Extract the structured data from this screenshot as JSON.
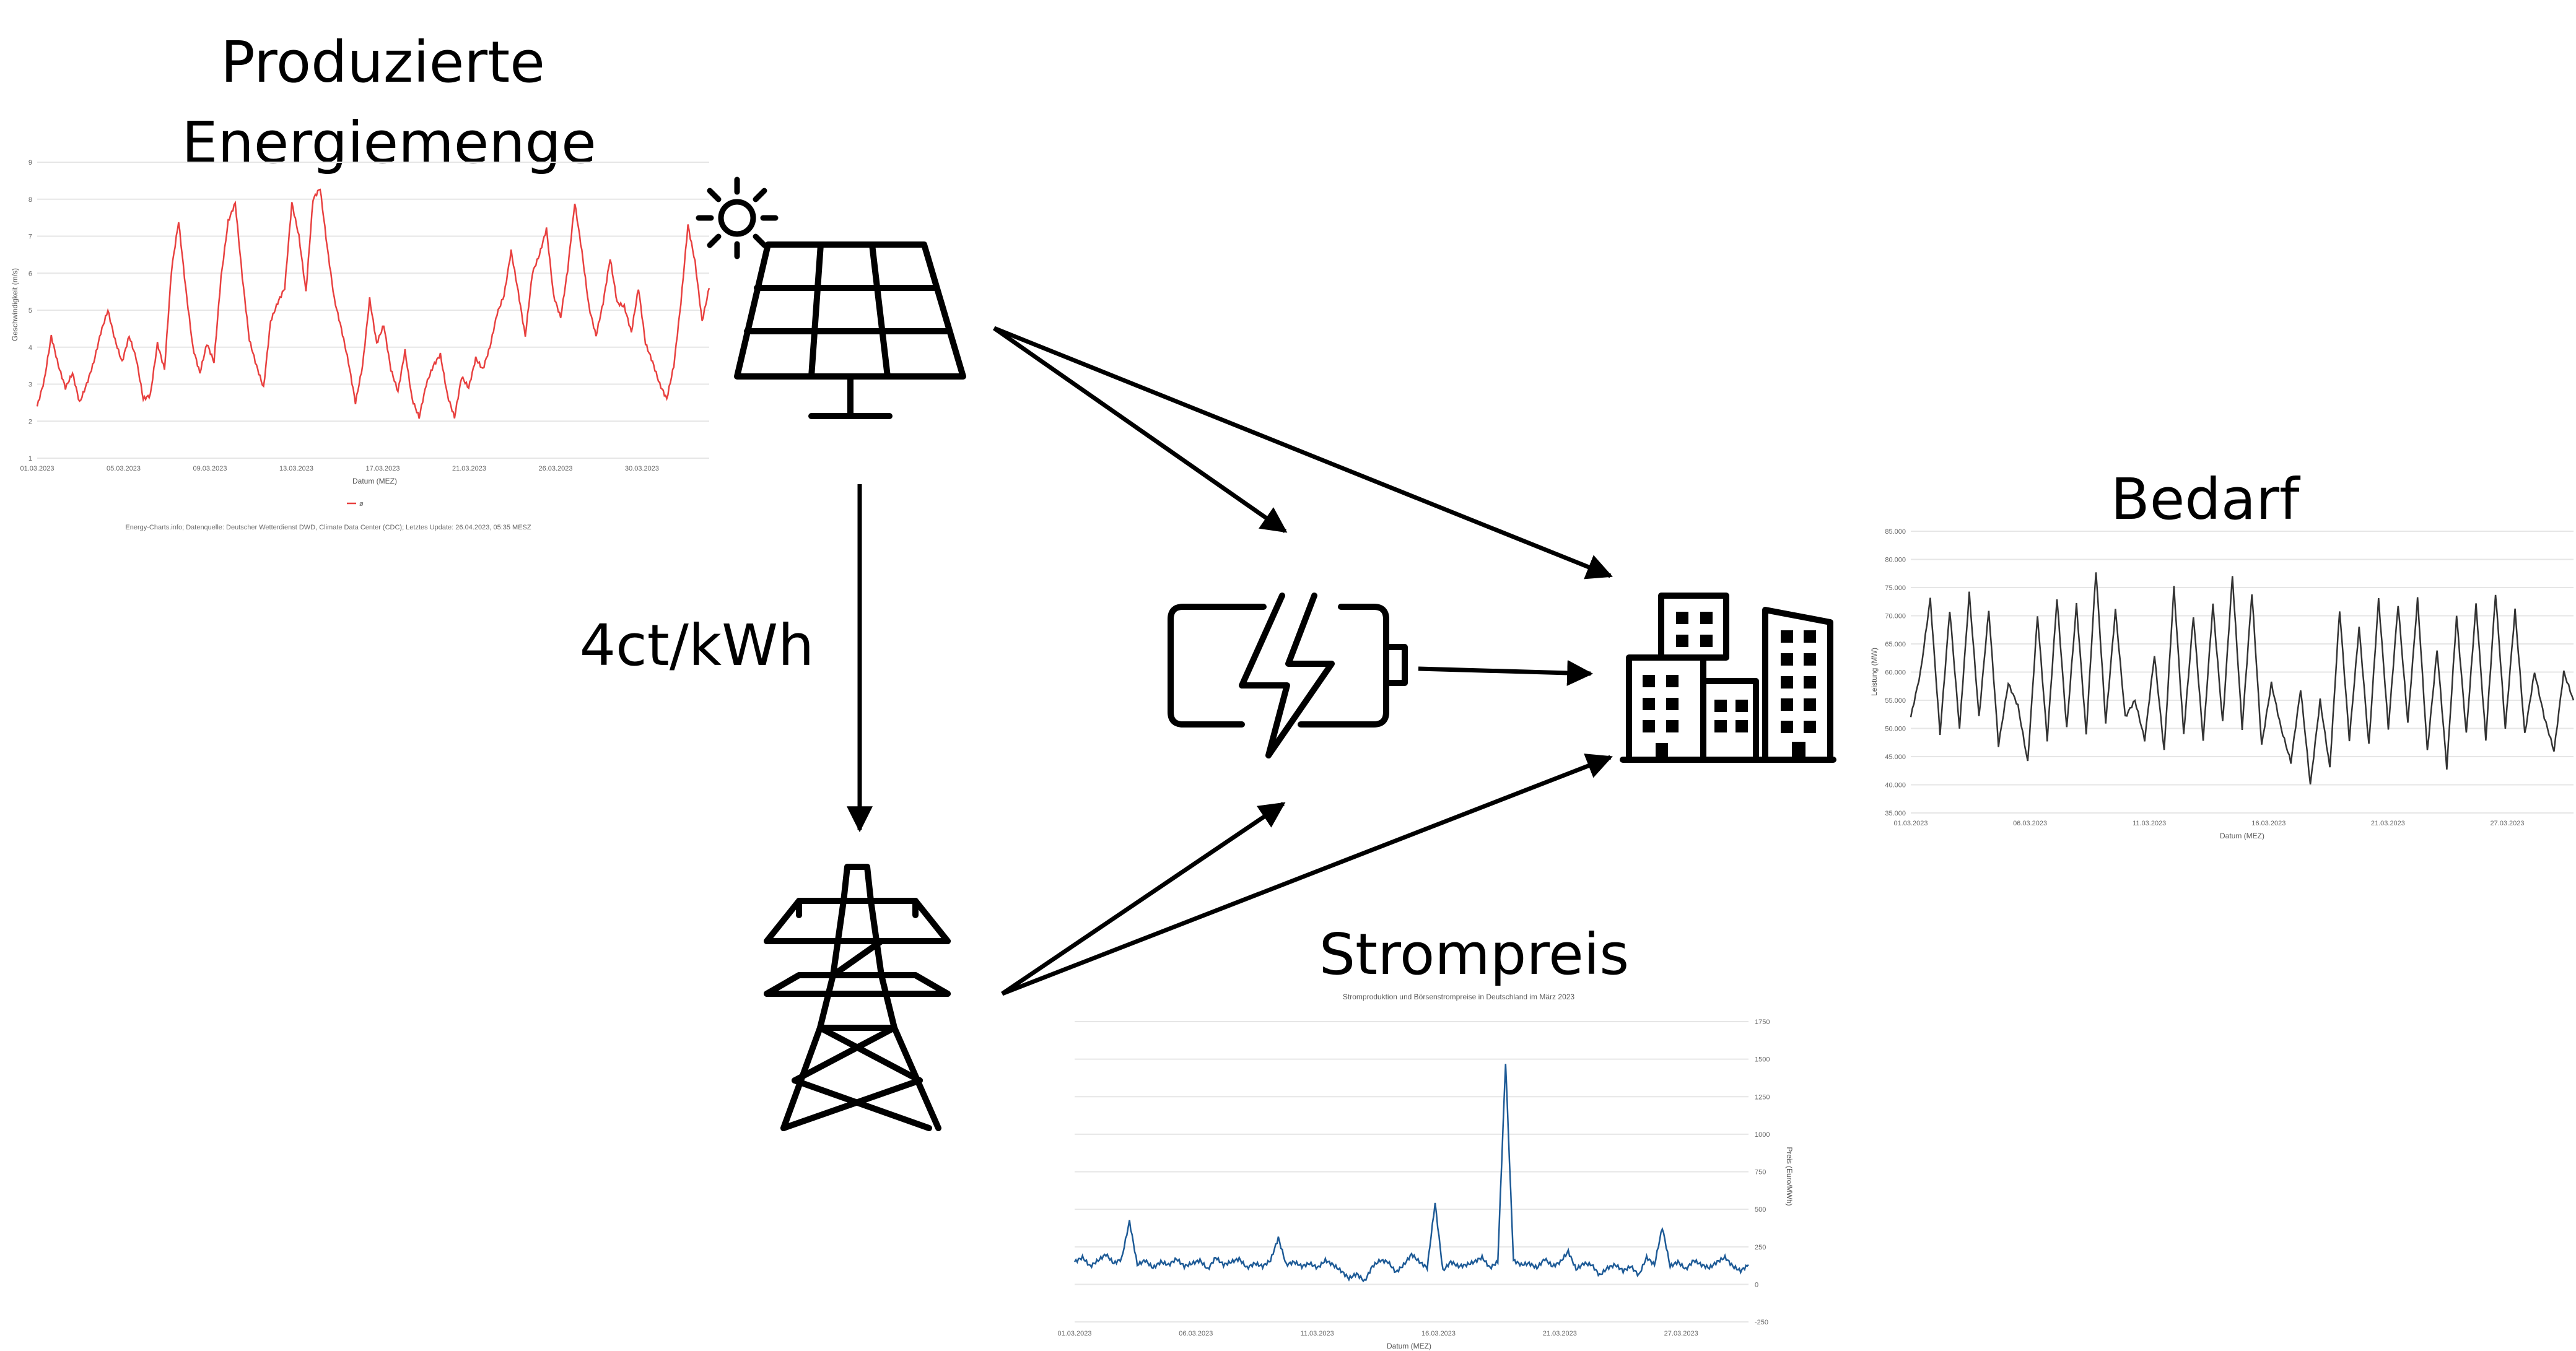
{
  "labels": {
    "production_title_line1": "Produzierte",
    "production_title_line2": "Energiemenge",
    "demand_title": "Bedarf",
    "price_title": "Strompreis",
    "grid_price": "4ct/kWh"
  },
  "icons": [
    "sun-icon",
    "solar-panel-icon",
    "battery-icon",
    "buildings-icon",
    "power-tower-icon"
  ],
  "colors": {
    "production_line": "#e8403f",
    "demand_line": "#333333",
    "price_line": "#1d5a96"
  },
  "chart_data": [
    {
      "id": "production",
      "type": "line",
      "ylabel": "Geschwindigkeit (m/s)",
      "xlabel": "Datum (MEZ)",
      "ylim": [
        1,
        9
      ],
      "yticks": [
        "1",
        "2",
        "3",
        "4",
        "5",
        "6",
        "7",
        "8",
        "9"
      ],
      "xticks": [
        "01.03.2023",
        "05.03.2023",
        "09.03.2023",
        "13.03.2023",
        "17.03.2023",
        "21.03.2023",
        "26.03.2023",
        "30.03.2023"
      ],
      "legend": "ø",
      "source": "Energy-Charts.info; Datenquelle: Deutscher Wetterdienst DWD, Climate Data Center (CDC); Letztes Update: 26.04.2023, 05:35 MESZ",
      "series": [
        {
          "values": [
            2.4,
            3.1,
            4.3,
            3.5,
            2.9,
            3.3,
            2.5,
            3.0,
            3.6,
            4.4,
            5.0,
            4.2,
            3.6,
            4.3,
            3.7,
            2.6,
            2.7,
            4.1,
            3.4,
            6.1,
            7.4,
            5.6,
            4.0,
            3.3,
            4.1,
            3.6,
            5.9,
            7.4,
            7.9,
            5.9,
            4.2,
            3.5,
            2.9,
            4.7,
            5.2,
            5.6,
            7.9,
            7.0,
            5.5,
            8.0,
            8.3,
            6.7,
            5.3,
            4.5,
            3.6,
            2.5,
            3.5,
            5.3,
            4.1,
            4.6,
            3.4,
            2.8,
            3.9,
            2.6,
            2.1,
            3.0,
            3.5,
            3.8,
            2.7,
            2.1,
            3.2,
            2.9,
            3.7,
            3.4,
            4.0,
            4.9,
            5.4,
            6.6,
            5.5,
            4.3,
            6.0,
            6.5,
            7.2,
            5.4,
            4.8,
            6.1,
            7.9,
            6.6,
            5.1,
            4.3,
            5.2,
            6.4,
            5.2,
            5.1,
            4.4,
            5.6,
            4.1,
            3.6,
            3.0,
            2.6,
            3.5,
            5.2,
            7.3,
            6.3,
            4.7,
            5.6
          ]
        }
      ]
    },
    {
      "id": "demand",
      "type": "line",
      "ylabel": "Leistung (MW)",
      "xlabel": "Datum (MEZ)",
      "ylim": [
        35000,
        85000
      ],
      "yticks": [
        "35.000",
        "40.000",
        "45.000",
        "50.000",
        "55.000",
        "60.000",
        "65.000",
        "70.000",
        "75.000",
        "80.000",
        "85.000"
      ],
      "xticks": [
        "01.03.2023",
        "06.03.2023",
        "11.03.2023",
        "16.03.2023",
        "21.03.2023",
        "27.03.2023"
      ],
      "series": [
        {
          "values": [
            52000,
            60000,
            73000,
            49000,
            71000,
            50000,
            74000,
            52000,
            71000,
            47000,
            58000,
            54000,
            44000,
            70000,
            48000,
            73000,
            50000,
            72000,
            49000,
            78000,
            51000,
            71000,
            52000,
            55000,
            48000,
            63000,
            46000,
            75000,
            49000,
            70000,
            48000,
            72000,
            51000,
            77000,
            50000,
            74000,
            47000,
            58000,
            50000,
            44000,
            57000,
            40000,
            55000,
            43000,
            71000,
            48000,
            68000,
            47000,
            73000,
            50000,
            72000,
            51000,
            73000,
            46000,
            64000,
            43000,
            70000,
            49000,
            72000,
            48000,
            74000,
            50000,
            71000,
            49000,
            60000,
            52000,
            46000,
            60000,
            55000
          ]
        }
      ]
    },
    {
      "id": "price",
      "type": "line",
      "title": "Stromproduktion und Börsenstrompreise in Deutschland im März 2023",
      "ylabel": "Preis (Euro/MWh)",
      "xlabel": "Datum (MEZ)",
      "ylim": [
        -250,
        1750
      ],
      "yticks": [
        "-250",
        "0",
        "250",
        "500",
        "750",
        "1000",
        "1250",
        "1500",
        "1750"
      ],
      "xticks": [
        "01.03.2023",
        "06.03.2023",
        "11.03.2023",
        "16.03.2023",
        "21.03.2023",
        "27.03.2023"
      ],
      "series": [
        {
          "values": [
            150,
            180,
            120,
            160,
            200,
            140,
            170,
            420,
            130,
            160,
            110,
            150,
            130,
            170,
            120,
            140,
            160,
            100,
            180,
            130,
            150,
            170,
            110,
            140,
            120,
            160,
            310,
            130,
            150,
            120,
            140,
            110,
            160,
            130,
            90,
            40,
            70,
            20,
            120,
            160,
            150,
            80,
            130,
            200,
            150,
            110,
            540,
            90,
            150,
            120,
            130,
            150,
            180,
            110,
            150,
            1480,
            160,
            130,
            140,
            110,
            170,
            120,
            150,
            220,
            100,
            140,
            130,
            60,
            110,
            130,
            90,
            120,
            60,
            180,
            130,
            380,
            120,
            150,
            100,
            160,
            130,
            110,
            150,
            180,
            120,
            90,
            130
          ]
        }
      ]
    }
  ]
}
